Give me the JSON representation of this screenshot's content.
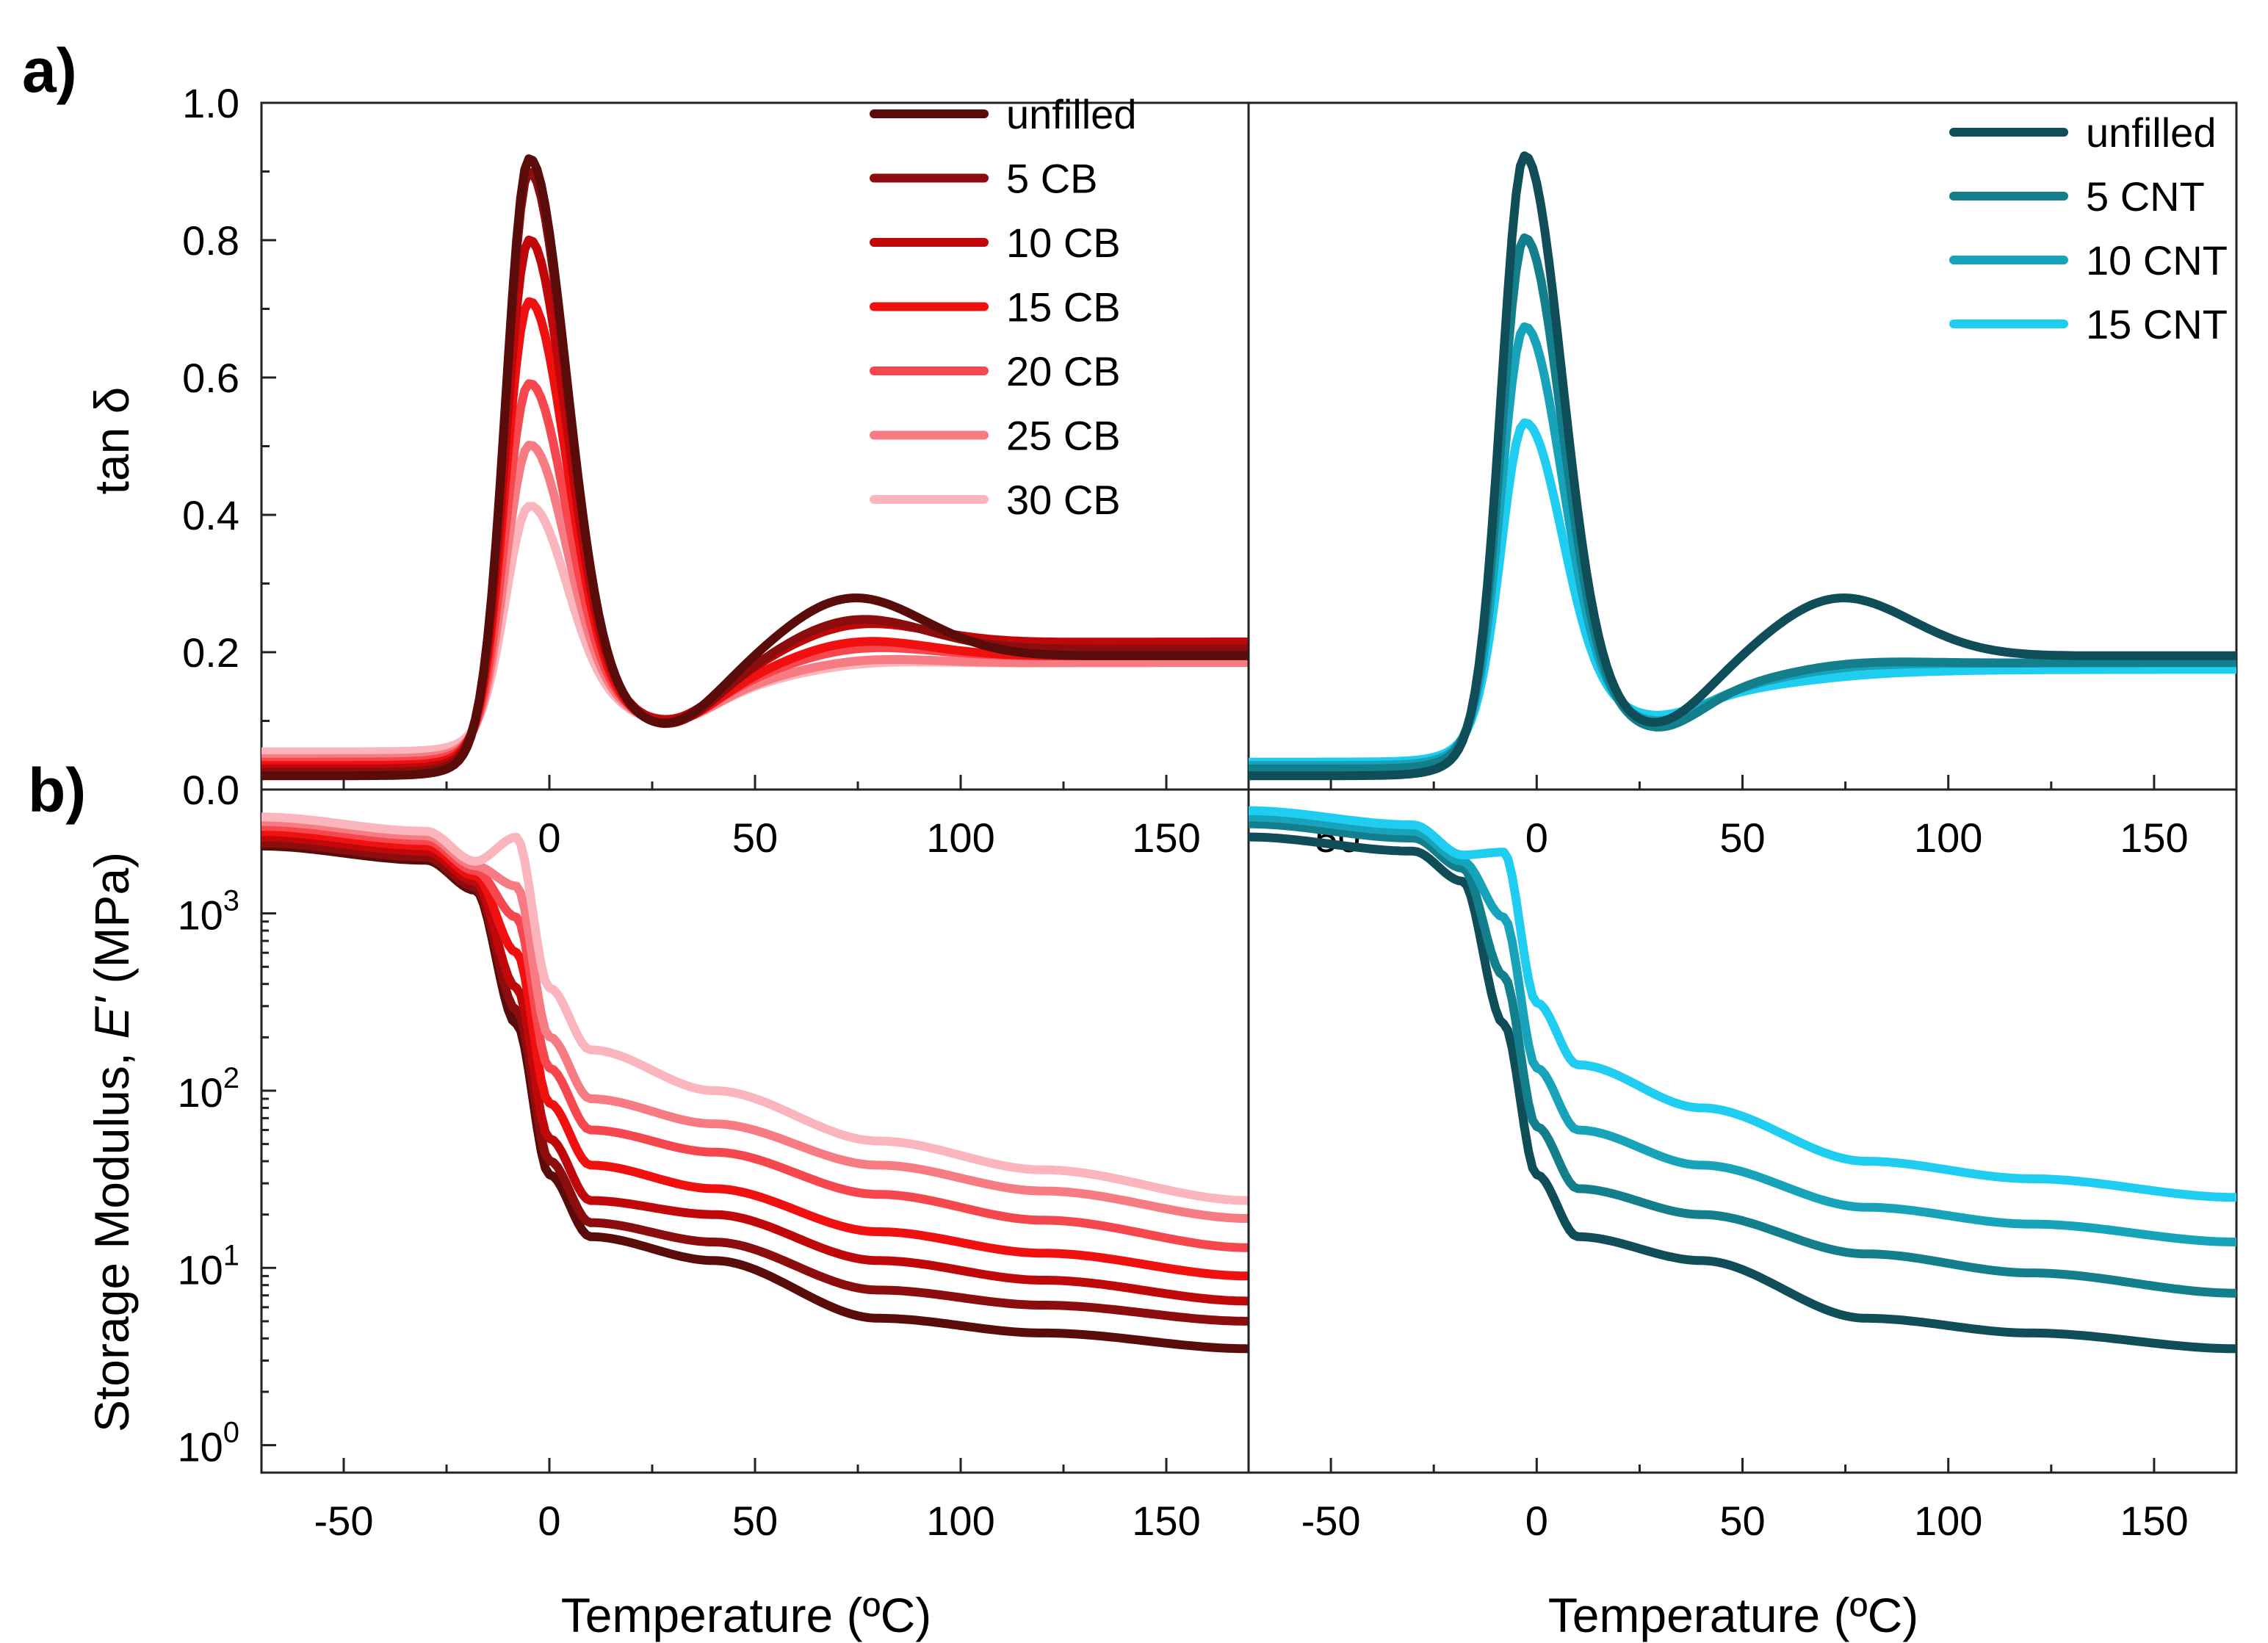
{
  "figure_labels": {
    "a": "a)",
    "b": "b)"
  },
  "chart_data": [
    {
      "id": "a-left",
      "type": "line",
      "panel": "a",
      "xlabel": "",
      "ylabel": "tan δ",
      "xlim": [
        -70,
        170
      ],
      "ylim": [
        0,
        1.0
      ],
      "yscale": "linear",
      "xticks": [
        -50,
        0,
        50,
        100,
        150
      ],
      "xtick_labels": [
        "-50",
        "0",
        "50",
        "100",
        "150"
      ],
      "yticks": [
        0,
        0.2,
        0.4,
        0.6,
        0.8,
        1.0
      ],
      "ytick_labels": [
        "0.0",
        "0.2",
        "0.4",
        "0.6",
        "0.8",
        "1.0"
      ],
      "legend_position": "top-right",
      "series": [
        {
          "name": "unfilled",
          "color": "#5a0c0a",
          "peak": 0.93,
          "base": 0.02,
          "post": 0.125,
          "hump": 0.1,
          "trough": 0.09,
          "tail": 0.22
        },
        {
          "name": "5 CB",
          "color": "#8b0d0d",
          "peak": 0.91,
          "base": 0.025,
          "post": 0.125,
          "hump": 0.06,
          "trough": 0.09,
          "tail": 0.23
        },
        {
          "name": "10 CB",
          "color": "#c0080a",
          "peak": 0.81,
          "base": 0.03,
          "post": 0.125,
          "hump": 0.045,
          "trough": 0.095,
          "tail": 0.24
        },
        {
          "name": "15 CB",
          "color": "#f01010",
          "peak": 0.72,
          "base": 0.035,
          "post": 0.125,
          "hump": 0.035,
          "trough": 0.095,
          "tail": 0.22
        },
        {
          "name": "20 CB",
          "color": "#f5474d",
          "peak": 0.6,
          "base": 0.04,
          "post": 0.125,
          "hump": 0.025,
          "trough": 0.1,
          "tail": 0.22
        },
        {
          "name": "25 CB",
          "color": "#f77b83",
          "peak": 0.51,
          "base": 0.045,
          "post": 0.125,
          "hump": 0.015,
          "trough": 0.1,
          "tail": 0.21
        },
        {
          "name": "30 CB",
          "color": "#fab5bd",
          "peak": 0.42,
          "base": 0.055,
          "post": 0.125,
          "hump": 0.01,
          "trough": 0.1,
          "tail": 0.21
        }
      ],
      "peak_temperature": -5
    },
    {
      "id": "a-right",
      "type": "line",
      "panel": "a",
      "xlabel": "",
      "ylabel": "",
      "xlim": [
        -70,
        170
      ],
      "ylim": [
        0,
        1.0
      ],
      "yscale": "linear",
      "xticks": [
        -50,
        0,
        50,
        100,
        150
      ],
      "xtick_labels": [
        "-50",
        "0",
        "50",
        "100",
        "150"
      ],
      "legend_position": "top-right",
      "series": [
        {
          "name": "unfilled",
          "color": "#0f4e58",
          "peak": 0.93,
          "base": 0.02,
          "post": 0.125,
          "hump": 0.1,
          "trough": 0.09,
          "tail": 0.22
        },
        {
          "name": "5 CNT",
          "color": "#137f8c",
          "peak": 0.81,
          "base": 0.03,
          "post": 0.125,
          "hump": 0.01,
          "trough": 0.09,
          "tail": 0.21
        },
        {
          "name": "10 CNT",
          "color": "#17a4bb",
          "peak": 0.68,
          "base": 0.035,
          "post": 0.125,
          "hump": 0.005,
          "trough": 0.1,
          "tail": 0.21
        },
        {
          "name": "15 CNT",
          "color": "#1ecdf0",
          "peak": 0.54,
          "base": 0.04,
          "post": 0.125,
          "hump": 0.0,
          "trough": 0.11,
          "tail": 0.2
        }
      ],
      "peak_temperature": -3
    },
    {
      "id": "b-left",
      "type": "line",
      "panel": "b",
      "xlabel": "Temperature (ºC)",
      "ylabel": "Storage Modulus, E' (MPa)",
      "xlim": [
        -70,
        170
      ],
      "ylim": [
        0.7,
        5000
      ],
      "yscale": "log",
      "xticks": [
        -50,
        0,
        50,
        100,
        150
      ],
      "xtick_labels": [
        "-50",
        "0",
        "50",
        "100",
        "150"
      ],
      "yticks": [
        1,
        10,
        100,
        1000
      ],
      "ytick_labels": [
        {
          "base": "10",
          "exp": "0"
        },
        {
          "base": "10",
          "exp": "1"
        },
        {
          "base": "10",
          "exp": "2"
        },
        {
          "base": "10",
          "exp": "3"
        }
      ],
      "series": [
        {
          "name": "unfilled",
          "color": "#5a0c0a",
          "glassy": 2400,
          "r10": 15,
          "r40": 11,
          "r80": 5.2,
          "r170": 3.5
        },
        {
          "name": "5 CB",
          "color": "#8b0d0d",
          "glassy": 2500,
          "r10": 18,
          "r40": 14,
          "r80": 7.5,
          "r170": 5.0
        },
        {
          "name": "10 CB",
          "color": "#c0080a",
          "glassy": 2700,
          "r10": 24,
          "r40": 20,
          "r80": 11,
          "r170": 6.5
        },
        {
          "name": "15 CB",
          "color": "#f01010",
          "glassy": 2900,
          "r10": 38,
          "r40": 28,
          "r80": 16,
          "r170": 9.0
        },
        {
          "name": "20 CB",
          "color": "#f5474d",
          "glassy": 3100,
          "r10": 60,
          "r40": 45,
          "r80": 26,
          "r170": 13
        },
        {
          "name": "25 CB",
          "color": "#f77b83",
          "glassy": 3300,
          "r10": 90,
          "r40": 65,
          "r80": 38,
          "r170": 19
        },
        {
          "name": "30 CB",
          "color": "#fab5bd",
          "glassy": 3500,
          "r10": 170,
          "r40": 100,
          "r80": 52,
          "r170": 24
        }
      ]
    },
    {
      "id": "b-right",
      "type": "line",
      "panel": "b",
      "xlabel": "Temperature (ºC)",
      "ylabel": "",
      "xlim": [
        -70,
        170
      ],
      "ylim": [
        0.7,
        5000
      ],
      "yscale": "log",
      "xticks": [
        -50,
        0,
        50,
        100,
        150
      ],
      "xtick_labels": [
        "-50",
        "0",
        "50",
        "100",
        "150"
      ],
      "series": [
        {
          "name": "unfilled",
          "color": "#0f4e58",
          "glassy": 2700,
          "r10": 15,
          "r40": 11,
          "r80": 5.2,
          "r170": 3.5
        },
        {
          "name": "5 CNT",
          "color": "#137f8c",
          "glassy": 3200,
          "r10": 28,
          "r40": 20,
          "r80": 12,
          "r170": 7.2
        },
        {
          "name": "10 CNT",
          "color": "#17a4bb",
          "glassy": 3500,
          "r10": 60,
          "r40": 38,
          "r80": 22,
          "r170": 14
        },
        {
          "name": "15 CNT",
          "color": "#1ecdf0",
          "glassy": 3800,
          "r10": 140,
          "r40": 80,
          "r80": 40,
          "r170": 25
        }
      ]
    }
  ]
}
